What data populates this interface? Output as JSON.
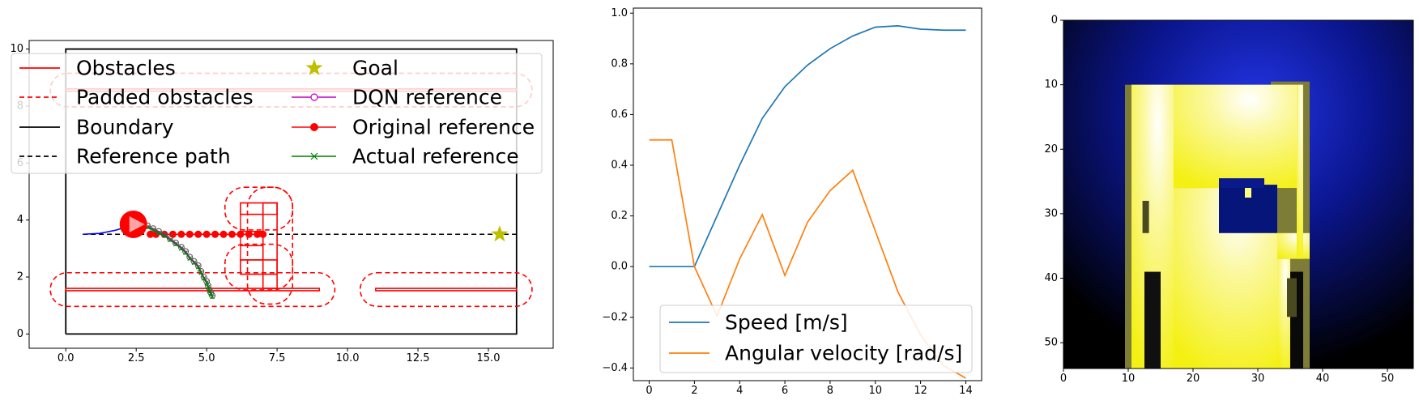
{
  "chart_data": [
    {
      "type": "line",
      "title": "",
      "xlim": [
        -1.3,
        17.3
      ],
      "ylim": [
        -0.5,
        10.3
      ],
      "xticks": [
        "0.0",
        "2.5",
        "5.0",
        "7.5",
        "10.0",
        "12.5",
        "15.0"
      ],
      "xtick_values": [
        0,
        2.5,
        5,
        7.5,
        10,
        12.5,
        15
      ],
      "yticks": [
        "0",
        "2",
        "4",
        "6",
        "8",
        "10"
      ],
      "ytick_values": [
        0,
        2,
        4,
        6,
        8,
        10
      ],
      "legend": {
        "placement": "upper-left",
        "entries": [
          "Obstacles",
          "Padded obstacles",
          "Boundary",
          "Reference path",
          "Goal",
          "DQN reference",
          "Original reference",
          "Actual reference"
        ]
      },
      "boundary": [
        [
          0,
          0
        ],
        [
          16,
          0
        ],
        [
          16,
          10
        ],
        [
          0,
          10
        ],
        [
          0,
          0
        ]
      ],
      "reference_path": {
        "x": [
          0.6,
          2.4,
          16
        ],
        "y": [
          3.5,
          3.5,
          3.5
        ]
      },
      "goal": [
        15.4,
        3.5
      ],
      "robot": {
        "x": 2.4,
        "y": 3.85
      },
      "obstacles": [
        [
          [
            0,
            1.52
          ],
          [
            9,
            1.52
          ],
          [
            9,
            1.6
          ],
          [
            0,
            1.6
          ]
        ],
        [
          [
            11,
            1.52
          ],
          [
            16,
            1.52
          ],
          [
            16,
            1.6
          ],
          [
            11,
            1.6
          ]
        ],
        [
          [
            0,
            8.52
          ],
          [
            16,
            8.52
          ],
          [
            16,
            8.6
          ],
          [
            0,
            8.6
          ]
        ],
        [
          [
            6.2,
            2.1
          ],
          [
            7.5,
            2.1
          ],
          [
            7.5,
            2.6
          ],
          [
            6.2,
            2.6
          ]
        ],
        [
          [
            6.2,
            4.2
          ],
          [
            7.5,
            4.2
          ],
          [
            7.5,
            4.6
          ],
          [
            6.2,
            4.6
          ]
        ],
        [
          [
            7.0,
            1.6
          ],
          [
            7.5,
            1.6
          ],
          [
            7.5,
            4.6
          ],
          [
            7.0,
            4.6
          ]
        ]
      ],
      "original_reference": {
        "x": [
          3.0,
          3.2,
          3.5,
          3.8,
          4.1,
          4.4,
          4.7,
          5.0,
          5.3,
          5.6,
          5.9,
          6.2,
          6.5,
          6.8,
          7.0
        ],
        "y": [
          3.5,
          3.5,
          3.5,
          3.5,
          3.5,
          3.5,
          3.5,
          3.5,
          3.5,
          3.5,
          3.5,
          3.5,
          3.5,
          3.5,
          3.5
        ]
      },
      "dqn_reference": {
        "x": [
          2.9,
          3.1,
          3.3,
          3.5,
          3.7,
          3.9,
          4.1,
          4.25,
          4.4,
          4.55,
          4.7,
          4.8,
          4.9,
          5.0,
          5.05,
          5.1,
          5.15,
          5.2
        ],
        "y": [
          3.8,
          3.7,
          3.6,
          3.5,
          3.35,
          3.2,
          3.05,
          2.9,
          2.7,
          2.55,
          2.4,
          2.2,
          2.0,
          1.85,
          1.7,
          1.55,
          1.45,
          1.35
        ]
      },
      "actual_reference": {
        "x": [
          2.9,
          3.1,
          3.3,
          3.5,
          3.7,
          3.9,
          4.1,
          4.25,
          4.4,
          4.55,
          4.7,
          4.8,
          4.9,
          5.0,
          5.05,
          5.1,
          5.15,
          5.2
        ],
        "y": [
          3.75,
          3.65,
          3.55,
          3.45,
          3.3,
          3.15,
          3.0,
          2.85,
          2.65,
          2.5,
          2.35,
          2.15,
          1.95,
          1.8,
          1.65,
          1.5,
          1.4,
          1.3
        ]
      },
      "trajectory": {
        "x": [
          0.6,
          1.2,
          1.8,
          2.2,
          2.4
        ],
        "y": [
          3.5,
          3.53,
          3.65,
          3.78,
          3.85
        ]
      }
    },
    {
      "type": "line",
      "title": "",
      "xlim": [
        -0.7,
        14.7
      ],
      "ylim": [
        -0.45,
        1.02
      ],
      "xticks": [
        "0",
        "2",
        "4",
        "6",
        "8",
        "10",
        "12",
        "14"
      ],
      "xtick_values": [
        0,
        2,
        4,
        6,
        8,
        10,
        12,
        14
      ],
      "yticks": [
        "−0.4",
        "−0.2",
        "0.0",
        "0.2",
        "0.4",
        "0.6",
        "0.8",
        "1.0"
      ],
      "ytick_values": [
        -0.4,
        -0.2,
        0,
        0.2,
        0.4,
        0.6,
        0.8,
        1.0
      ],
      "legend": {
        "placement": "lower-center"
      },
      "series": [
        {
          "name": "Speed [m/s]",
          "color": "#1f77b4",
          "x": [
            0,
            1,
            2,
            3,
            4,
            5,
            6,
            7,
            8,
            9,
            10,
            11,
            12,
            13,
            14
          ],
          "values": [
            0,
            0,
            0,
            0.2,
            0.4,
            0.585,
            0.71,
            0.795,
            0.86,
            0.91,
            0.945,
            0.95,
            0.937,
            0.933,
            0.933
          ]
        },
        {
          "name": "Angular velocity [rad/s]",
          "color": "#ff7f0e",
          "x": [
            0,
            1,
            2,
            3,
            4,
            5,
            6,
            7,
            8,
            9,
            10,
            11,
            12,
            13,
            14
          ],
          "values": [
            0.5,
            0.5,
            0,
            -0.195,
            0.03,
            0.205,
            -0.035,
            0.175,
            0.3,
            0.38,
            0.14,
            -0.1,
            -0.27,
            -0.39,
            -0.44
          ]
        }
      ]
    },
    {
      "type": "heatmap",
      "title": "",
      "xlim": [
        0,
        54
      ],
      "ylim": [
        54,
        0
      ],
      "xticks": [
        "0",
        "10",
        "20",
        "30",
        "40",
        "50"
      ],
      "xtick_values": [
        0,
        10,
        20,
        30,
        40,
        50
      ],
      "yticks": [
        "0",
        "10",
        "20",
        "30",
        "40",
        "50"
      ],
      "ytick_values": [
        0,
        10,
        20,
        30,
        40,
        50
      ],
      "colors": {
        "background": "#000000",
        "glow": "#1a2ad8",
        "free": "#f4f12a",
        "edge": "#7d7d38"
      }
    }
  ]
}
